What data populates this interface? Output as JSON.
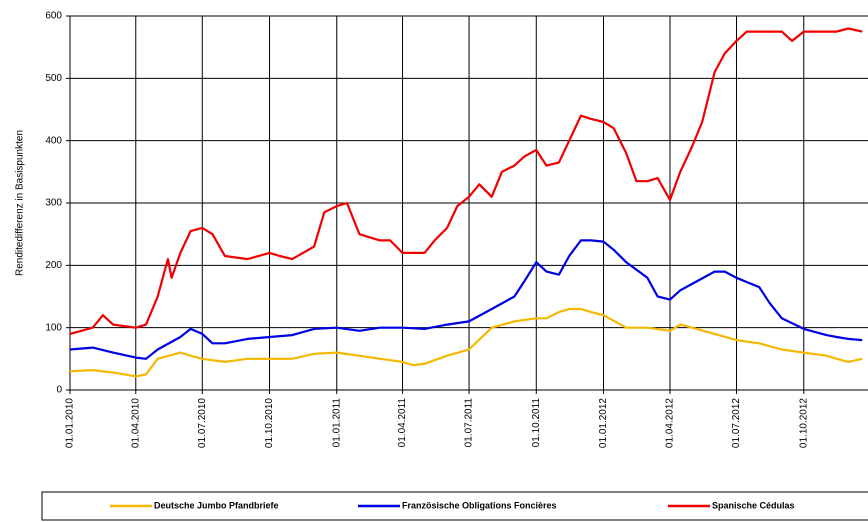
{
  "chart_data": {
    "type": "line",
    "y_label": "Renditedifferenz in Basispunkten",
    "ylim": [
      0,
      600
    ],
    "yticks": [
      0,
      100,
      200,
      300,
      400,
      500,
      600
    ],
    "xlim": [
      "2010-01-01",
      "2013-01-01"
    ],
    "xticks": [
      {
        "value": "2010-01-01",
        "label": "01.01.2010"
      },
      {
        "value": "2010-04-01",
        "label": "01.04.2010"
      },
      {
        "value": "2010-07-01",
        "label": "01.07.2010"
      },
      {
        "value": "2010-10-01",
        "label": "01.10.2010"
      },
      {
        "value": "2011-01-01",
        "label": "01.01.2011"
      },
      {
        "value": "2011-04-01",
        "label": "01.04.2011"
      },
      {
        "value": "2011-07-01",
        "label": "01.07.2011"
      },
      {
        "value": "2011-10-01",
        "label": "01.10.2011"
      },
      {
        "value": "2012-01-01",
        "label": "01.01.2012"
      },
      {
        "value": "2012-04-01",
        "label": "01.04.2012"
      },
      {
        "value": "2012-07-01",
        "label": "01.07.2012"
      },
      {
        "value": "2012-10-01",
        "label": "01.10.2012"
      }
    ],
    "grid": true,
    "legend": "bottom",
    "series": [
      {
        "name": "Deutsche Jumbo Pfandbriefe",
        "color": "#f5b800",
        "x": [
          "2010-01-01",
          "2010-02-01",
          "2010-03-01",
          "2010-04-01",
          "2010-04-15",
          "2010-05-01",
          "2010-06-01",
          "2010-06-15",
          "2010-07-01",
          "2010-08-01",
          "2010-09-01",
          "2010-10-01",
          "2010-11-01",
          "2010-12-01",
          "2011-01-01",
          "2011-02-01",
          "2011-03-01",
          "2011-04-01",
          "2011-04-15",
          "2011-05-01",
          "2011-06-01",
          "2011-07-01",
          "2011-08-01",
          "2011-09-01",
          "2011-10-01",
          "2011-10-15",
          "2011-11-01",
          "2011-11-15",
          "2011-12-01",
          "2011-12-15",
          "2012-01-01",
          "2012-02-01",
          "2012-03-01",
          "2012-04-01",
          "2012-04-15",
          "2012-05-01",
          "2012-06-01",
          "2012-07-01",
          "2012-08-01",
          "2012-09-01",
          "2012-10-01",
          "2012-11-01",
          "2012-11-15",
          "2012-12-01",
          "2012-12-20"
        ],
        "values": [
          30,
          32,
          28,
          22,
          25,
          50,
          60,
          55,
          50,
          45,
          50,
          50,
          50,
          58,
          60,
          55,
          50,
          45,
          40,
          42,
          55,
          65,
          100,
          110,
          115,
          115,
          125,
          130,
          130,
          125,
          120,
          100,
          100,
          95,
          105,
          100,
          90,
          80,
          75,
          65,
          60,
          55,
          50,
          45,
          50
        ]
      },
      {
        "name": "Französische Obligations  Foncières",
        "color": "#0000e6",
        "x": [
          "2010-01-01",
          "2010-02-01",
          "2010-03-01",
          "2010-04-01",
          "2010-04-15",
          "2010-05-01",
          "2010-06-01",
          "2010-06-15",
          "2010-07-01",
          "2010-07-15",
          "2010-08-01",
          "2010-09-01",
          "2010-10-01",
          "2010-11-01",
          "2010-12-01",
          "2011-01-01",
          "2011-02-01",
          "2011-03-01",
          "2011-04-01",
          "2011-05-01",
          "2011-06-01",
          "2011-07-01",
          "2011-08-01",
          "2011-09-01",
          "2011-09-15",
          "2011-10-01",
          "2011-10-15",
          "2011-11-01",
          "2011-11-15",
          "2011-12-01",
          "2011-12-15",
          "2012-01-01",
          "2012-01-15",
          "2012-02-01",
          "2012-03-01",
          "2012-03-15",
          "2012-04-01",
          "2012-04-15",
          "2012-05-01",
          "2012-06-01",
          "2012-06-15",
          "2012-07-01",
          "2012-08-01",
          "2012-08-15",
          "2012-09-01",
          "2012-10-01",
          "2012-11-01",
          "2012-11-15",
          "2012-12-01",
          "2012-12-20"
        ],
        "values": [
          65,
          68,
          60,
          52,
          50,
          65,
          85,
          98,
          90,
          75,
          75,
          82,
          85,
          88,
          98,
          100,
          95,
          100,
          100,
          98,
          105,
          110,
          130,
          150,
          175,
          205,
          190,
          185,
          215,
          240,
          240,
          238,
          225,
          205,
          180,
          150,
          145,
          160,
          170,
          190,
          190,
          180,
          165,
          140,
          115,
          98,
          88,
          85,
          82,
          80
        ]
      },
      {
        "name": "Spanische Cédulas",
        "color": "#f00000",
        "x": [
          "2010-01-01",
          "2010-02-01",
          "2010-02-15",
          "2010-03-01",
          "2010-04-01",
          "2010-04-15",
          "2010-05-01",
          "2010-05-15",
          "2010-05-20",
          "2010-06-01",
          "2010-06-15",
          "2010-07-01",
          "2010-07-15",
          "2010-08-01",
          "2010-09-01",
          "2010-10-01",
          "2010-10-15",
          "2010-11-01",
          "2010-12-01",
          "2010-12-15",
          "2011-01-01",
          "2011-01-15",
          "2011-02-01",
          "2011-03-01",
          "2011-03-15",
          "2011-04-01",
          "2011-05-01",
          "2011-05-15",
          "2011-06-01",
          "2011-06-15",
          "2011-07-01",
          "2011-07-15",
          "2011-08-01",
          "2011-08-15",
          "2011-09-01",
          "2011-09-15",
          "2011-10-01",
          "2011-10-15",
          "2011-11-01",
          "2011-11-15",
          "2011-12-01",
          "2011-12-15",
          "2012-01-01",
          "2012-01-15",
          "2012-02-01",
          "2012-02-15",
          "2012-03-01",
          "2012-03-15",
          "2012-04-01",
          "2012-04-15",
          "2012-05-01",
          "2012-05-15",
          "2012-06-01",
          "2012-06-15",
          "2012-07-01",
          "2012-07-15",
          "2012-08-01",
          "2012-08-15",
          "2012-09-01",
          "2012-09-15",
          "2012-10-01",
          "2012-11-01",
          "2012-11-15",
          "2012-12-01",
          "2012-12-20"
        ],
        "values": [
          90,
          100,
          120,
          105,
          100,
          105,
          150,
          210,
          180,
          220,
          255,
          260,
          250,
          215,
          210,
          220,
          215,
          210,
          230,
          285,
          295,
          300,
          250,
          240,
          240,
          220,
          220,
          240,
          260,
          295,
          310,
          330,
          310,
          350,
          360,
          375,
          385,
          360,
          365,
          400,
          440,
          435,
          430,
          420,
          380,
          335,
          335,
          340,
          305,
          350,
          390,
          430,
          510,
          540,
          560,
          575,
          575,
          575,
          575,
          560,
          575,
          575,
          575,
          580,
          575
        ]
      }
    ]
  }
}
